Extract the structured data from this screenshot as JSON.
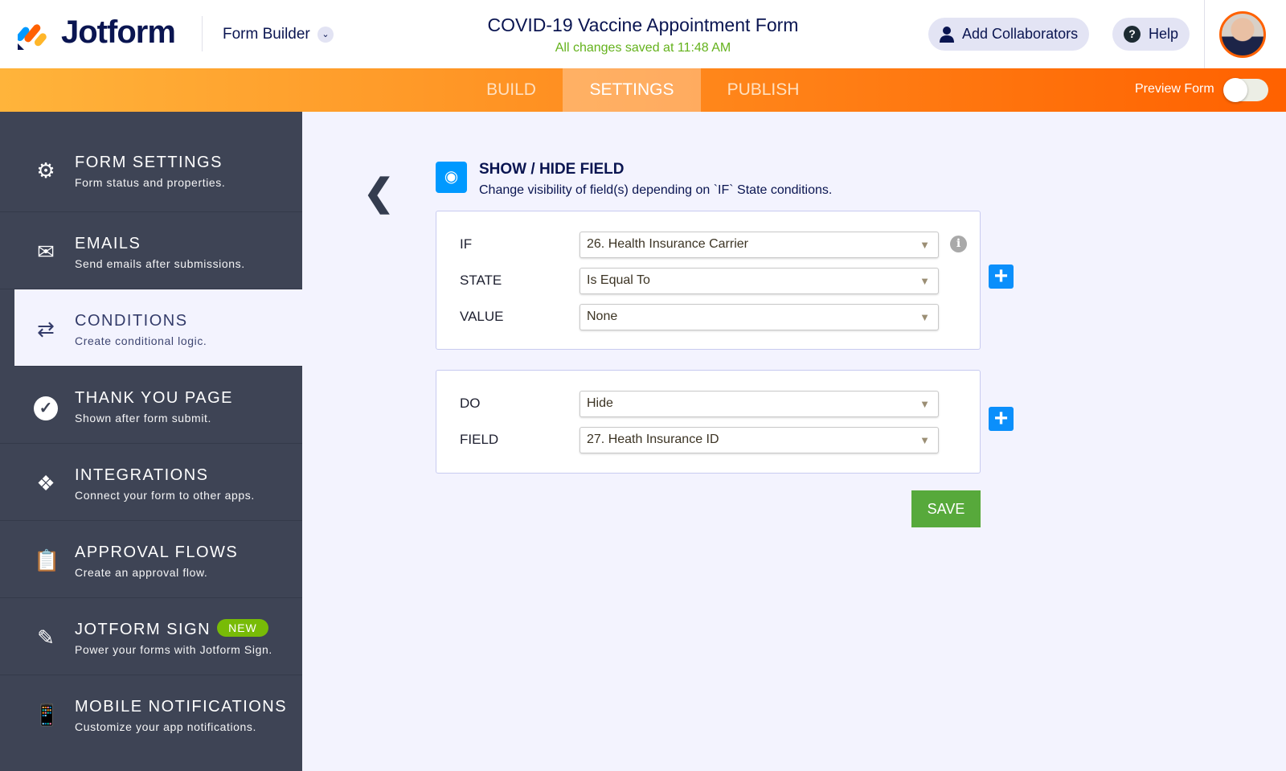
{
  "header": {
    "logo": "Jotform",
    "builder_label": "Form Builder",
    "form_title": "COVID-19 Vaccine Appointment Form",
    "save_status": "All changes saved at 11:48 AM",
    "add_collaborators": "Add Collaborators",
    "help": "Help"
  },
  "tabs": [
    {
      "label": "BUILD"
    },
    {
      "label": "SETTINGS",
      "active": true
    },
    {
      "label": "PUBLISH"
    }
  ],
  "preview": {
    "label": "Preview Form",
    "enabled": false
  },
  "sidebar": {
    "items": [
      {
        "title": "FORM SETTINGS",
        "subtitle": "Form status and properties.",
        "icon": "gear-icon"
      },
      {
        "title": "EMAILS",
        "subtitle": "Send emails after submissions.",
        "icon": "envelope-icon"
      },
      {
        "title": "CONDITIONS",
        "subtitle": "Create conditional logic.",
        "icon": "shuffle-icon",
        "active": true
      },
      {
        "title": "THANK YOU PAGE",
        "subtitle": "Shown after form submit.",
        "icon": "check-circle-icon"
      },
      {
        "title": "INTEGRATIONS",
        "subtitle": "Connect your form to other apps.",
        "icon": "puzzle-icon"
      },
      {
        "title": "APPROVAL FLOWS",
        "subtitle": "Create an approval flow.",
        "icon": "approval-icon"
      },
      {
        "title": "JOTFORM SIGN",
        "subtitle": "Power your forms with Jotform Sign.",
        "icon": "pen-icon",
        "badge": "NEW"
      },
      {
        "title": "MOBILE NOTIFICATIONS",
        "subtitle": "Customize your app notifications.",
        "icon": "mobile-icon"
      }
    ]
  },
  "condition": {
    "title": "SHOW / HIDE FIELD",
    "description": "Change visibility of field(s) depending on `IF` State conditions.",
    "if_label": "IF",
    "if_value": "26. Health Insurance Carrier",
    "state_label": "STATE",
    "state_value": "Is Equal To",
    "value_label": "VALUE",
    "value_value": "None",
    "do_label": "DO",
    "do_value": "Hide",
    "field_label": "FIELD",
    "field_value": "27. Heath Insurance ID",
    "save": "SAVE"
  },
  "colors": {
    "accent": "#ff6100",
    "primary_blue": "#0099ff",
    "save_green": "#57a93b",
    "sidebar": "#3e4455"
  }
}
